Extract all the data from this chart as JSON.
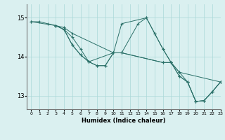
{
  "xlabel": "Humidex (Indice chaleur)",
  "xlim": [
    -0.5,
    23
  ],
  "ylim": [
    12.65,
    15.35
  ],
  "yticks": [
    13,
    14,
    15
  ],
  "xticks": [
    0,
    1,
    2,
    3,
    4,
    5,
    6,
    7,
    8,
    9,
    10,
    11,
    12,
    13,
    14,
    15,
    16,
    17,
    18,
    19,
    20,
    21,
    22,
    23
  ],
  "bg_color": "#daf0f0",
  "grid_color": "#aad8d8",
  "line_color": "#2a7068",
  "lines": [
    {
      "x": [
        0,
        1,
        2,
        3,
        4,
        5,
        10,
        11,
        16,
        17,
        18,
        23
      ],
      "y": [
        14.9,
        14.9,
        14.85,
        14.8,
        14.75,
        14.6,
        14.1,
        14.1,
        13.85,
        13.85,
        13.6,
        13.35
      ]
    },
    {
      "x": [
        0,
        3,
        4,
        5,
        6,
        7,
        8,
        9,
        10,
        11,
        14,
        15,
        16,
        17,
        18,
        19,
        20,
        21,
        22,
        23
      ],
      "y": [
        14.9,
        14.8,
        14.7,
        14.5,
        14.2,
        13.87,
        13.77,
        13.77,
        14.1,
        14.85,
        15.0,
        14.6,
        14.2,
        13.85,
        13.5,
        13.35,
        12.85,
        12.87,
        13.1,
        13.35
      ]
    },
    {
      "x": [
        3,
        4,
        5,
        6,
        7,
        8,
        9,
        10,
        11,
        13,
        14,
        15,
        16,
        17,
        18,
        19,
        20,
        21,
        22,
        23
      ],
      "y": [
        14.8,
        14.7,
        14.3,
        14.05,
        13.87,
        13.77,
        13.77,
        14.1,
        14.1,
        14.85,
        15.0,
        14.6,
        14.2,
        13.85,
        13.5,
        13.35,
        12.85,
        12.87,
        13.1,
        13.35
      ]
    },
    {
      "x": [
        3,
        4,
        5,
        6,
        7,
        10,
        11,
        16,
        17,
        18,
        19,
        20,
        21,
        22,
        23
      ],
      "y": [
        14.8,
        14.7,
        14.3,
        14.05,
        13.87,
        14.1,
        14.1,
        13.85,
        13.85,
        13.6,
        13.35,
        12.85,
        12.87,
        13.1,
        13.35
      ]
    }
  ]
}
